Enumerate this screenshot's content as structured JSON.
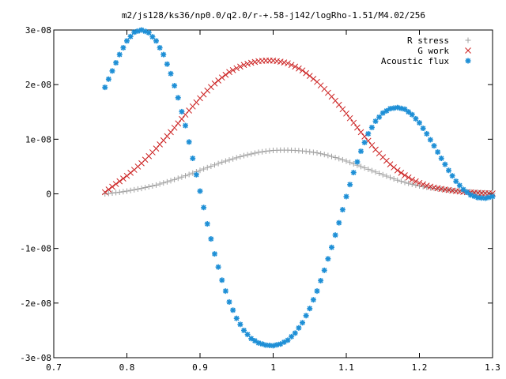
{
  "chart_data": {
    "type": "scatter",
    "title": "m2/js128/ks36/np0.0/q2.0/r-+.58-j142/logRho-1.51/M4.02/256",
    "xlabel": "",
    "ylabel": "",
    "xlim": [
      0.7,
      1.3
    ],
    "ylim": [
      -3e-08,
      3e-08
    ],
    "xticks": [
      0.7,
      0.8,
      0.9,
      1.0,
      1.1,
      1.2,
      1.3
    ],
    "xtick_labels": [
      "0.7",
      "0.8",
      "0.9",
      "1",
      "1.1",
      "1.2",
      "1.3"
    ],
    "yticks": [
      -3e-08,
      -2e-08,
      -1e-08,
      0,
      1e-08,
      2e-08,
      3e-08
    ],
    "ytick_labels": [
      "-3e-08",
      "-2e-08",
      "-1e-08",
      "0",
      "1e-08",
      "2e-08",
      "3e-08"
    ],
    "grid": false,
    "legend_position": "top-right",
    "series": [
      {
        "name": "R stress",
        "marker": "plus",
        "color": "#a0a0a0",
        "x": [
          0.77,
          0.78,
          0.79,
          0.8,
          0.81,
          0.82,
          0.83,
          0.84,
          0.85,
          0.86,
          0.87,
          0.88,
          0.89,
          0.9,
          0.91,
          0.92,
          0.93,
          0.94,
          0.95,
          0.96,
          0.97,
          0.98,
          0.99,
          1.0,
          1.01,
          1.02,
          1.03,
          1.04,
          1.05,
          1.06,
          1.07,
          1.08,
          1.09,
          1.1,
          1.11,
          1.12,
          1.13,
          1.14,
          1.15,
          1.16,
          1.17,
          1.18,
          1.19,
          1.2,
          1.21,
          1.22,
          1.23,
          1.24,
          1.25,
          1.26,
          1.27,
          1.28,
          1.29,
          1.3
        ],
        "y": [
          0,
          1.5e-10,
          3e-10,
          5e-10,
          7.5e-10,
          1e-09,
          1.3e-09,
          1.6e-09,
          2e-09,
          2.4e-09,
          2.85e-09,
          3.3e-09,
          3.8e-09,
          4.3e-09,
          4.8e-09,
          5.3e-09,
          5.8e-09,
          6.2e-09,
          6.6e-09,
          7e-09,
          7.3e-09,
          7.6e-09,
          7.8e-09,
          7.95e-09,
          8e-09,
          8e-09,
          7.95e-09,
          7.85e-09,
          7.7e-09,
          7.5e-09,
          7.2e-09,
          6.85e-09,
          6.45e-09,
          6e-09,
          5.5e-09,
          5e-09,
          4.5e-09,
          4e-09,
          3.5e-09,
          3e-09,
          2.5e-09,
          2.1e-09,
          1.75e-09,
          1.45e-09,
          1.2e-09,
          1e-09,
          8.5e-10,
          7e-10,
          5.5e-10,
          4.5e-10,
          3.5e-10,
          2.5e-10,
          1.8e-10,
          1.2e-10
        ]
      },
      {
        "name": "G work",
        "marker": "cross",
        "color": "#cc2222",
        "x": [
          0.77,
          0.78,
          0.79,
          0.8,
          0.81,
          0.82,
          0.83,
          0.84,
          0.85,
          0.86,
          0.87,
          0.88,
          0.89,
          0.9,
          0.91,
          0.92,
          0.93,
          0.94,
          0.95,
          0.96,
          0.97,
          0.98,
          0.99,
          1.0,
          1.01,
          1.02,
          1.03,
          1.04,
          1.05,
          1.06,
          1.07,
          1.08,
          1.09,
          1.1,
          1.11,
          1.12,
          1.13,
          1.14,
          1.15,
          1.16,
          1.17,
          1.18,
          1.19,
          1.2,
          1.21,
          1.22,
          1.23,
          1.24,
          1.25,
          1.26,
          1.27,
          1.28,
          1.29,
          1.3
        ],
        "y": [
          3e-10,
          1.3e-09,
          2.3e-09,
          3.3e-09,
          4.4e-09,
          5.6e-09,
          6.9e-09,
          8.3e-09,
          9.8e-09,
          1.13e-08,
          1.29e-08,
          1.45e-08,
          1.6e-08,
          1.75e-08,
          1.89e-08,
          2.02e-08,
          2.13e-08,
          2.23e-08,
          2.3e-08,
          2.36e-08,
          2.4e-08,
          2.43e-08,
          2.44e-08,
          2.44e-08,
          2.42e-08,
          2.39e-08,
          2.33e-08,
          2.26e-08,
          2.16e-08,
          2.05e-08,
          1.92e-08,
          1.78e-08,
          1.63e-08,
          1.47e-08,
          1.3e-08,
          1.13e-08,
          9.7e-09,
          8.1e-09,
          6.7e-09,
          5.4e-09,
          4.3e-09,
          3.4e-09,
          2.6e-09,
          2e-09,
          1.5e-09,
          1.15e-09,
          9e-10,
          7e-10,
          5e-10,
          3.5e-10,
          2.5e-10,
          1.8e-10,
          1.2e-10,
          8e-11
        ]
      },
      {
        "name": "Acoustic flux",
        "marker": "star",
        "color": "#1e8fd6",
        "x": [
          0.77,
          0.78,
          0.79,
          0.8,
          0.81,
          0.82,
          0.83,
          0.84,
          0.85,
          0.86,
          0.87,
          0.88,
          0.89,
          0.9,
          0.91,
          0.92,
          0.93,
          0.94,
          0.95,
          0.96,
          0.97,
          0.98,
          0.99,
          1.0,
          1.01,
          1.02,
          1.03,
          1.04,
          1.05,
          1.06,
          1.07,
          1.08,
          1.09,
          1.1,
          1.11,
          1.12,
          1.13,
          1.14,
          1.15,
          1.16,
          1.17,
          1.18,
          1.19,
          1.2,
          1.21,
          1.22,
          1.23,
          1.24,
          1.25,
          1.26,
          1.27,
          1.28,
          1.29,
          1.3
        ],
        "y": [
          1.95e-08,
          2.25e-08,
          2.55e-08,
          2.8e-08,
          2.96e-08,
          3e-08,
          2.95e-08,
          2.8e-08,
          2.55e-08,
          2.2e-08,
          1.76e-08,
          1.25e-08,
          6.5e-09,
          5e-10,
          -5.5e-09,
          -1.1e-08,
          -1.58e-08,
          -1.98e-08,
          -2.28e-08,
          -2.5e-08,
          -2.65e-08,
          -2.73e-08,
          -2.77e-08,
          -2.78e-08,
          -2.75e-08,
          -2.68e-08,
          -2.55e-08,
          -2.36e-08,
          -2.1e-08,
          -1.78e-08,
          -1.4e-08,
          -9.8e-09,
          -5.3e-09,
          -5e-10,
          3.9e-09,
          7.8e-09,
          1.1e-08,
          1.33e-08,
          1.48e-08,
          1.56e-08,
          1.58e-08,
          1.55e-08,
          1.45e-08,
          1.3e-08,
          1.1e-08,
          8.8e-09,
          6.5e-09,
          4.3e-09,
          2.3e-09,
          8e-10,
          -2e-10,
          -7e-10,
          -8e-10,
          -5e-10
        ]
      }
    ]
  }
}
